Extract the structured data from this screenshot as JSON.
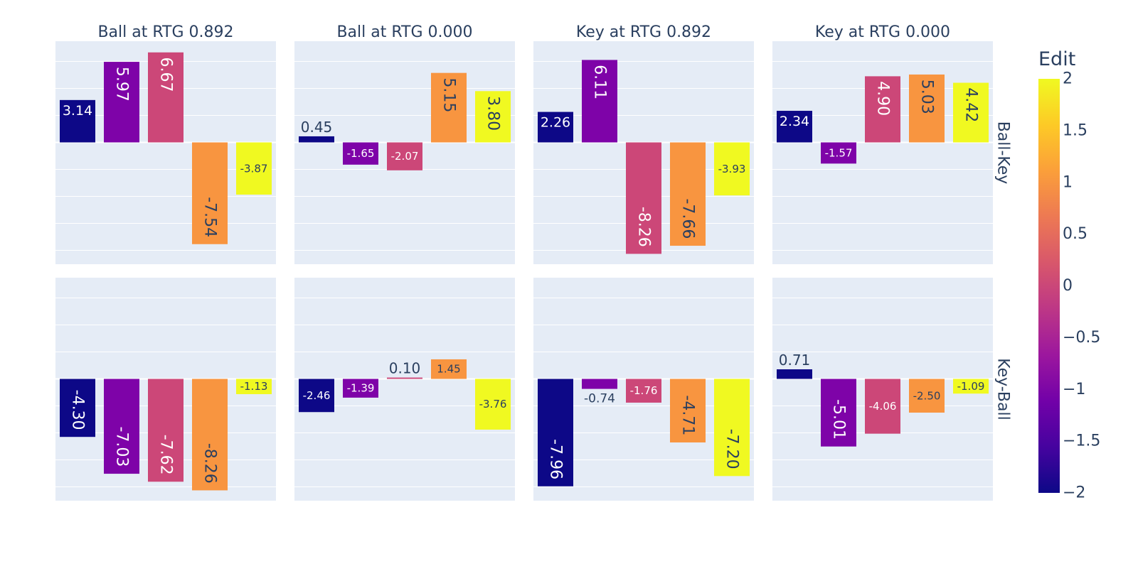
{
  "colorbar": {
    "title": "Edit",
    "range": [
      -2,
      2
    ],
    "ticks": [
      "2",
      "1.5",
      "1",
      "0.5",
      "0",
      "−0.5",
      "−1",
      "−1.5",
      "−2"
    ],
    "tick_values": [
      2,
      1.5,
      1,
      0.5,
      0,
      -0.5,
      -1,
      -1.5,
      -2
    ],
    "colorscale": "plasma"
  },
  "colors": {
    "plot_bg": "#E5ECF6",
    "grid": "#FFFFFF",
    "text": "#2A3F5F",
    "bar_colors": [
      "#0D0887",
      "#7E03A8",
      "#CC4778",
      "#F89540",
      "#F0F921"
    ]
  },
  "chart_data": {
    "type": "bar",
    "facet_columns": [
      "Ball at RTG 0.892",
      "Ball at RTG 0.000",
      "Key at RTG 0.892",
      "Key at RTG 0.000"
    ],
    "facet_rows": [
      "Ball-Key",
      "Key-Ball"
    ],
    "edit_values": [
      -2,
      -1,
      0,
      1,
      2
    ],
    "ylim": [
      -9.2,
      9.2
    ],
    "grid": true,
    "show_axis_ticks": false,
    "panels": [
      {
        "row": "Ball-Key",
        "column": "Ball at RTG 0.892",
        "values": [
          3.14,
          5.97,
          6.67,
          -7.54,
          -3.87
        ],
        "labels": [
          "3.14",
          "5.97",
          "6.67",
          "-7.54",
          "-3.87"
        ]
      },
      {
        "row": "Ball-Key",
        "column": "Ball at RTG 0.000",
        "values": [
          0.45,
          -1.65,
          -2.07,
          5.15,
          3.8
        ],
        "labels": [
          "0.45",
          "-1.65",
          "-2.07",
          "5.15",
          "3.80"
        ]
      },
      {
        "row": "Ball-Key",
        "column": "Key at RTG 0.892",
        "values": [
          2.26,
          6.11,
          -8.26,
          -7.66,
          -3.93
        ],
        "labels": [
          "2.26",
          "6.11",
          "-8.26",
          "-7.66",
          "-3.93"
        ]
      },
      {
        "row": "Ball-Key",
        "column": "Key at RTG 0.000",
        "values": [
          2.34,
          -1.57,
          4.9,
          5.03,
          4.42
        ],
        "labels": [
          "2.34",
          "-1.57",
          "4.90",
          "5.03",
          "4.42"
        ]
      },
      {
        "row": "Key-Ball",
        "column": "Ball at RTG 0.892",
        "values": [
          -4.3,
          -7.03,
          -7.62,
          -8.26,
          -1.13
        ],
        "labels": [
          "-4.30",
          "-7.03",
          "-7.62",
          "-8.26",
          "-1.13"
        ]
      },
      {
        "row": "Key-Ball",
        "column": "Ball at RTG 0.000",
        "values": [
          -2.46,
          -1.39,
          0.1,
          1.45,
          -3.76
        ],
        "labels": [
          "-2.46",
          "-1.39",
          "0.10",
          "1.45",
          "-3.76"
        ]
      },
      {
        "row": "Key-Ball",
        "column": "Key at RTG 0.892",
        "values": [
          -7.96,
          -0.74,
          -1.76,
          -4.71,
          -7.2
        ],
        "labels": [
          "-7.96",
          "-0.74",
          "-1.76",
          "-4.71",
          "-7.20"
        ]
      },
      {
        "row": "Key-Ball",
        "column": "Key at RTG 0.000",
        "values": [
          0.71,
          -5.01,
          -4.06,
          -2.5,
          -1.09
        ],
        "labels": [
          "0.71",
          "-5.01",
          "-4.06",
          "-2.50",
          "-1.09"
        ]
      }
    ]
  }
}
